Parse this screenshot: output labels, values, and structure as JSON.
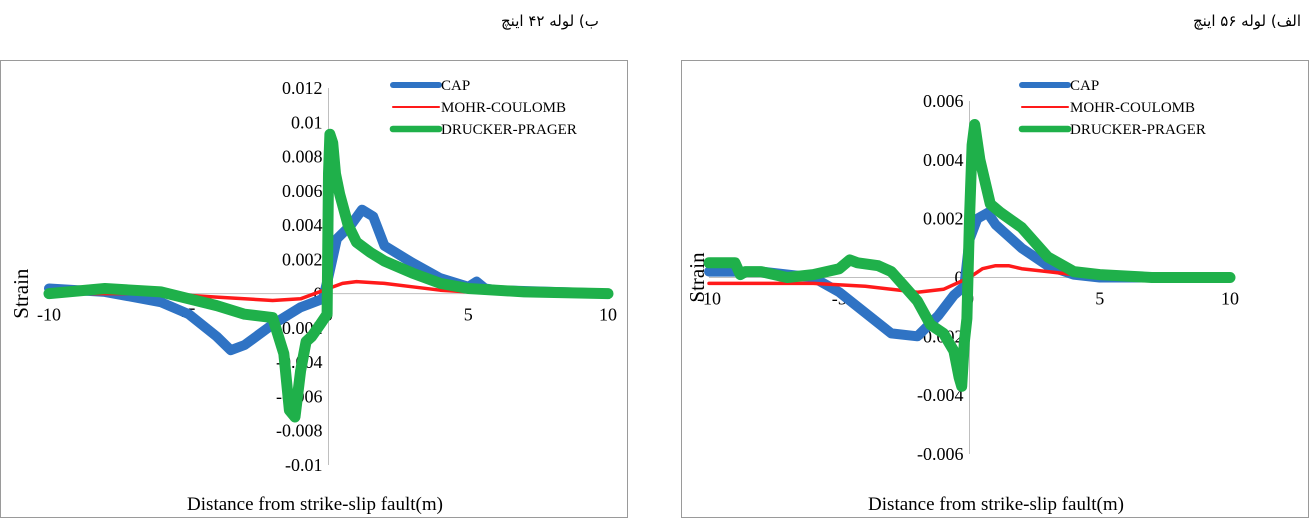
{
  "captions": {
    "left": "ب) لوله ۴۲ اینچ",
    "right": "الف) لوله ۵۶ اینچ"
  },
  "colors": {
    "CAP": "#2f73c4",
    "MOHR-COULOMB": "#ff1a1a",
    "DRUCKER-PRAGER": "#1fb04a",
    "axis": "#bfbfbf"
  },
  "chart_data": [
    {
      "type": "line",
      "panel": "42-inch pipe",
      "xlabel": "Distance from strike-slip fault(m)",
      "ylabel": "Strain",
      "xlim": [
        -10,
        10
      ],
      "ylim": [
        -0.01,
        0.012
      ],
      "xticks": [
        "-10",
        "-5",
        "0",
        "5",
        "10"
      ],
      "yticks": [
        "0.012",
        "0.01",
        "0.008",
        "0.006",
        "0.004",
        "0.002",
        "0",
        "-0.002",
        "-0.004",
        "-0.006",
        "-0.008",
        "-0.01"
      ],
      "legend_position": "top-right",
      "series": [
        {
          "name": "CAP",
          "x": [
            -10,
            -8,
            -6,
            -5,
            -4,
            -3.5,
            -3,
            -2,
            -1,
            -0.2,
            0,
            0.3,
            0.8,
            1.2,
            1.6,
            2,
            3,
            4,
            5,
            5.3,
            5.6,
            6,
            8,
            10
          ],
          "y": [
            0.0003,
            0.0001,
            -0.0005,
            -0.0012,
            -0.0025,
            -0.0033,
            -0.003,
            -0.0018,
            -0.0008,
            -0.0003,
            0.001,
            0.0032,
            0.004,
            0.0049,
            0.0045,
            0.0028,
            0.0018,
            0.0009,
            0.0004,
            0.0007,
            0.0003,
            0.0002,
            0.0001,
            0
          ]
        },
        {
          "name": "MOHR-COULOMB",
          "x": [
            -10,
            -6,
            -4,
            -2,
            -1,
            0,
            0.5,
            1,
            2,
            3,
            4,
            5,
            7,
            10
          ],
          "y": [
            0,
            0,
            -0.0002,
            -0.0004,
            -0.0003,
            0.0003,
            0.0006,
            0.0007,
            0.0006,
            0.0004,
            0.0002,
            0.0001,
            0,
            0
          ]
        },
        {
          "name": "DRUCKER-PRAGER",
          "x": [
            -10,
            -8,
            -6,
            -4,
            -3,
            -2,
            -1.6,
            -1.4,
            -1.2,
            -1.0,
            -0.8,
            -0.6,
            -0.3,
            -0.05,
            0,
            0.05,
            0.15,
            0.25,
            0.4,
            0.7,
            1,
            1.5,
            2,
            3,
            4,
            5,
            7,
            10
          ],
          "y": [
            0,
            0.0003,
            0.0001,
            -0.0007,
            -0.0012,
            -0.0014,
            -0.0035,
            -0.0068,
            -0.0072,
            -0.0045,
            -0.0028,
            -0.0025,
            -0.0018,
            -0.0012,
            0.007,
            0.0093,
            0.0088,
            0.007,
            0.0058,
            0.004,
            0.003,
            0.0024,
            0.0019,
            0.0012,
            0.0006,
            0.0003,
            0.0001,
            0
          ]
        }
      ]
    },
    {
      "type": "line",
      "panel": "56-inch pipe",
      "xlabel": "Distance from strike-slip fault(m)",
      "ylabel": "Strain",
      "xlim": [
        -10,
        10
      ],
      "ylim": [
        -0.006,
        0.006
      ],
      "xticks": [
        "-10",
        "-5",
        "0",
        "5",
        "10"
      ],
      "yticks": [
        "0.006",
        "0.004",
        "0.002",
        "0",
        "-0.002",
        "-0.004",
        "-0.006"
      ],
      "legend_position": "top-right",
      "series": [
        {
          "name": "CAP",
          "x": [
            -10,
            -8,
            -6,
            -5,
            -4,
            -3,
            -2,
            -1.2,
            -0.6,
            -0.2,
            0,
            0.3,
            0.7,
            1,
            1.5,
            2,
            3,
            4,
            5,
            7,
            10
          ],
          "y": [
            0.0002,
            0.0002,
            0,
            -0.0005,
            -0.0012,
            -0.0019,
            -0.002,
            -0.0013,
            -0.0006,
            -0.0003,
            0.0013,
            0.002,
            0.0022,
            0.0018,
            0.0014,
            0.001,
            0.0004,
            0.0001,
            0,
            0,
            0
          ]
        },
        {
          "name": "MOHR-COULOMB",
          "x": [
            -10,
            -6,
            -4,
            -3,
            -2,
            -1,
            0,
            0.5,
            1,
            1.5,
            2,
            3,
            4,
            6,
            10
          ],
          "y": [
            -0.0002,
            -0.0002,
            -0.0003,
            -0.0004,
            -0.0005,
            -0.0004,
            0,
            0.0003,
            0.0004,
            0.0004,
            0.0003,
            0.0002,
            0.0001,
            0,
            0
          ]
        },
        {
          "name": "DRUCKER-PRAGER",
          "x": [
            -10,
            -9,
            -8.8,
            -8.6,
            -8,
            -7,
            -6,
            -5,
            -4.6,
            -4.3,
            -3.5,
            -3,
            -2.5,
            -2,
            -1.5,
            -1,
            -0.6,
            -0.4,
            -0.3,
            -0.2,
            -0.1,
            0,
            0.1,
            0.2,
            0.4,
            0.8,
            1.2,
            2,
            3,
            4,
            5,
            7,
            10
          ],
          "y": [
            0.0005,
            0.0005,
            0.0001,
            0.0002,
            0.0002,
            0,
            0.0001,
            0.0003,
            0.0006,
            0.0005,
            0.0004,
            0.0002,
            -0.0003,
            -0.0008,
            -0.0016,
            -0.0019,
            -0.0025,
            -0.0034,
            -0.0037,
            -0.0022,
            -0.0014,
            0.002,
            0.0045,
            0.0052,
            0.004,
            0.0025,
            0.0022,
            0.0017,
            0.0007,
            0.0002,
            0.0001,
            0,
            0
          ]
        }
      ]
    }
  ]
}
